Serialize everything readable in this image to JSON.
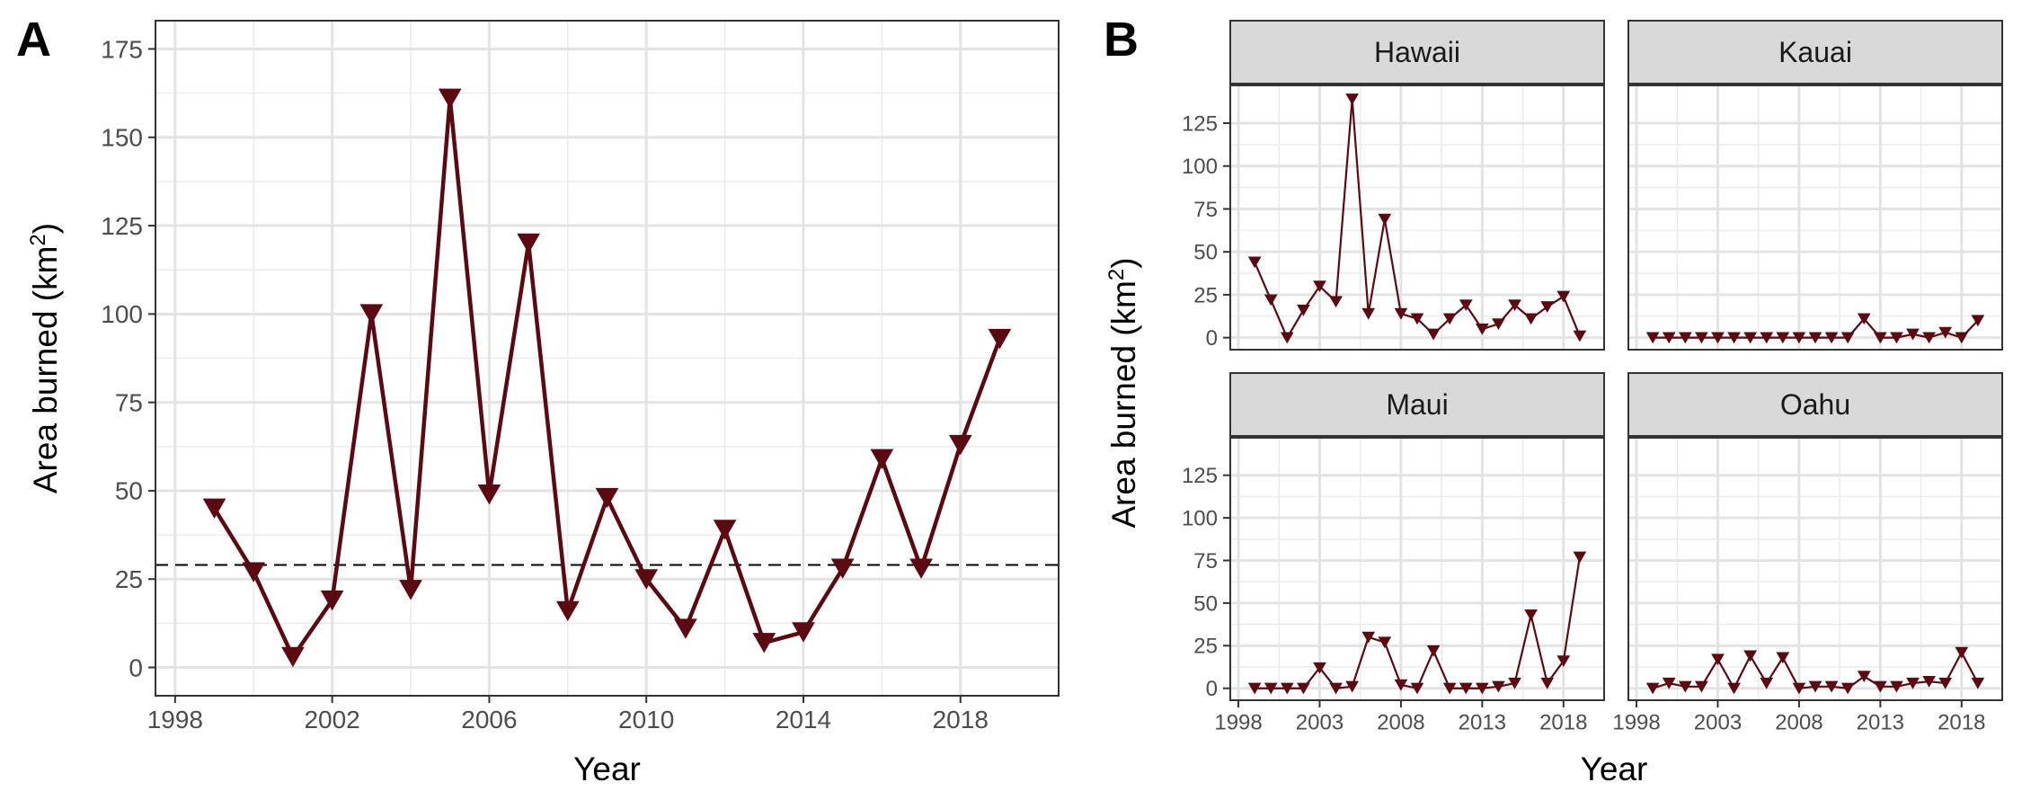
{
  "chart_data": [
    {
      "panel_label": "A",
      "type": "line",
      "marker": "down-triangle",
      "color": "#5c0a12",
      "xlabel": "Year",
      "ylabel": "Area burned (km",
      "ylabel_sup": "2",
      "ylabel_end": ")",
      "xlim": [
        1997.5,
        2020.5
      ],
      "ylim": [
        -8,
        183
      ],
      "xticks": [
        1998,
        2002,
        2006,
        2010,
        2014,
        2018
      ],
      "yticks": [
        0,
        25,
        50,
        75,
        100,
        125,
        150,
        175
      ],
      "reference_line": {
        "y": 29,
        "style": "dashed"
      },
      "grid": true,
      "x": [
        1999,
        2000,
        2001,
        2002,
        2003,
        2004,
        2005,
        2006,
        2007,
        2008,
        2009,
        2010,
        2011,
        2012,
        2013,
        2014,
        2015,
        2016,
        2017,
        2018,
        2019
      ],
      "values": [
        45,
        27,
        3,
        19,
        100,
        22,
        161,
        49,
        120,
        16,
        48,
        25,
        11,
        39,
        7,
        10,
        28,
        59,
        28,
        63,
        93
      ]
    },
    {
      "panel_label": "B",
      "type": "line",
      "facets": true,
      "marker": "down-triangle",
      "color": "#5c0a12",
      "xlabel": "Year",
      "ylabel": "Area burned (km",
      "ylabel_sup": "2",
      "ylabel_end": ")",
      "xlim": [
        1997.5,
        2020.5
      ],
      "ylim": [
        -7,
        147
      ],
      "xticks": [
        1998,
        2003,
        2008,
        2013,
        2018
      ],
      "yticks": [
        0,
        25,
        50,
        75,
        100,
        125
      ],
      "grid": true,
      "x": [
        1999,
        2000,
        2001,
        2002,
        2003,
        2004,
        2005,
        2006,
        2007,
        2008,
        2009,
        2010,
        2011,
        2012,
        2013,
        2014,
        2015,
        2016,
        2017,
        2018,
        2019
      ],
      "series": [
        {
          "name": "Hawaii",
          "values": [
            44,
            22,
            0,
            16,
            30,
            21,
            139,
            14,
            69,
            14,
            11,
            2,
            11,
            19,
            5,
            8,
            19,
            11,
            18,
            24,
            1
          ]
        },
        {
          "name": "Kauai",
          "values": [
            0,
            0,
            0,
            0,
            0,
            0,
            0,
            0,
            0,
            0,
            0,
            0,
            0,
            11,
            0,
            0,
            2,
            0,
            3,
            0,
            10
          ]
        },
        {
          "name": "Maui",
          "values": [
            0,
            0,
            0,
            0,
            12,
            0,
            1,
            30,
            27,
            2,
            0,
            22,
            0,
            0,
            0,
            1,
            3,
            43,
            3,
            16,
            77
          ]
        },
        {
          "name": "Oahu",
          "values": [
            0,
            3,
            1,
            1,
            17,
            0,
            19,
            3,
            18,
            0,
            1,
            1,
            0,
            7,
            1,
            1,
            3,
            4,
            3,
            21,
            3
          ]
        }
      ]
    }
  ]
}
